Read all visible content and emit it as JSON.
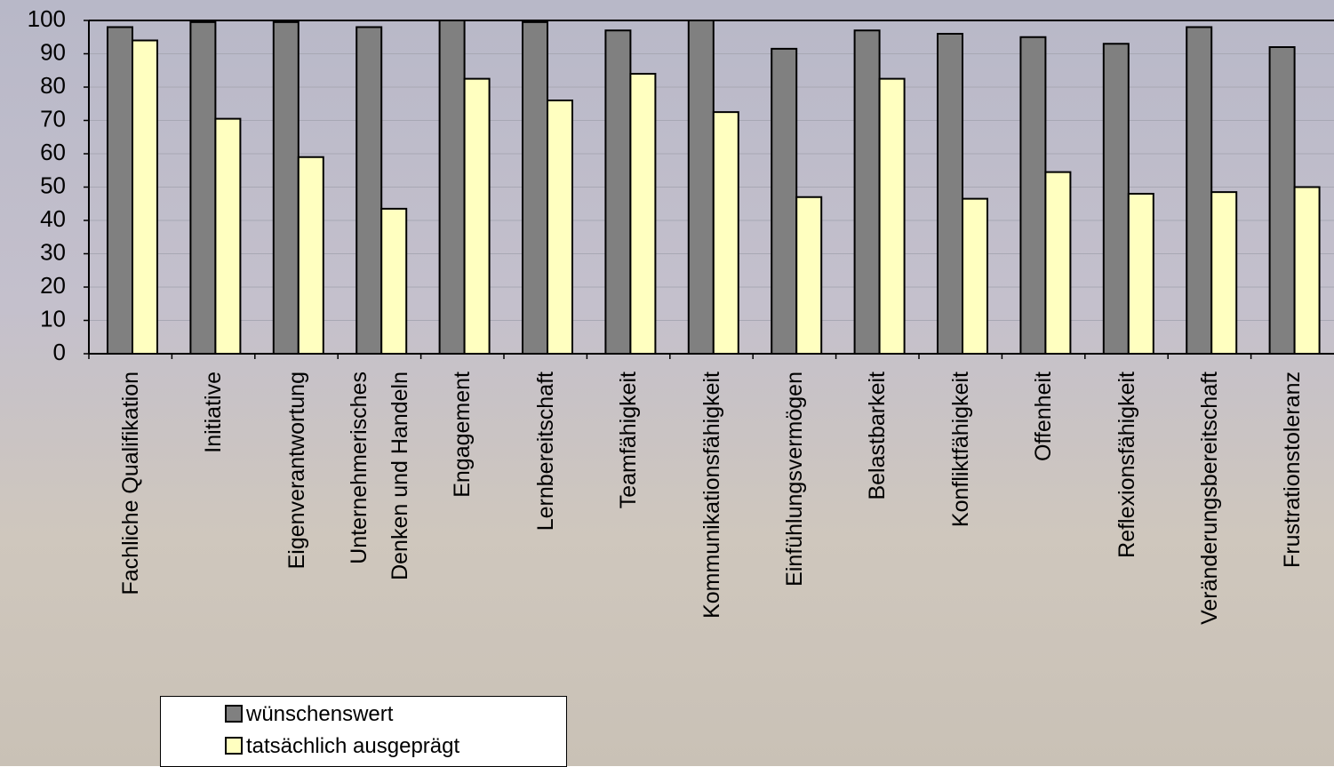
{
  "chart_data": {
    "type": "bar",
    "categories": [
      "Fachliche Qualifikation",
      "Initiative",
      "Eigenverantwortung",
      "Unternehmerisches\nDenken und Handeln",
      "Engagement",
      "Lernbereitschaft",
      "Teamfähigkeit",
      "Kommunikationsfähigkeit",
      "Einfühlungsvermögen",
      "Belastbarkeit",
      "Konfliktfähigkeit",
      "Offenheit",
      "Reflexionsfähigkeit",
      "Veränderungsbereitschaft",
      "Frustrationstoleranz"
    ],
    "series": [
      {
        "name": "wünschenswert",
        "color": "#808080",
        "values": [
          98,
          99.5,
          99.5,
          98,
          100,
          99.5,
          97,
          100,
          91.5,
          97,
          96,
          95,
          93,
          98,
          92
        ]
      },
      {
        "name": "tatsächlich ausgeprägt",
        "color": "#ffffc0",
        "values": [
          94,
          70.5,
          59,
          43.5,
          82.5,
          76,
          84,
          72.5,
          47,
          82.5,
          46.5,
          54.5,
          48,
          48.5,
          50
        ]
      }
    ],
    "ylim": [
      0,
      100
    ],
    "yticks": [
      0,
      10,
      20,
      30,
      40,
      50,
      60,
      70,
      80,
      90,
      100
    ],
    "grid": true
  }
}
